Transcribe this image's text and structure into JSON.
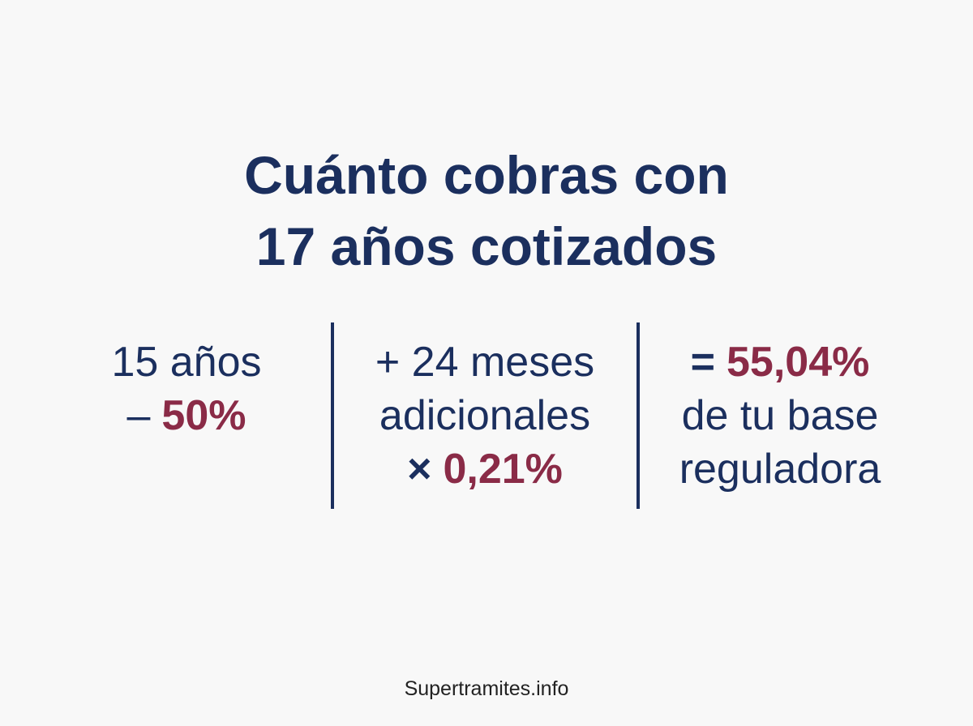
{
  "title": {
    "lines": [
      "Cuánto cobras con",
      "17 años cotizados"
    ]
  },
  "columns": [
    {
      "lines": [
        {
          "text": "15 años"
        },
        {
          "prefix": "–",
          "highlight": "50%"
        }
      ]
    },
    {
      "lines": [
        {
          "text": "+ 24 meses"
        },
        {
          "text": "adicionales"
        },
        {
          "prefix": "×",
          "highlight": "0,21%"
        }
      ]
    },
    {
      "lines": [
        {
          "prefix": "=",
          "highlight": "55,04%"
        },
        {
          "text": "de tu base"
        },
        {
          "text": "reguladora"
        }
      ]
    }
  ],
  "footer": "Supertramites.info"
}
